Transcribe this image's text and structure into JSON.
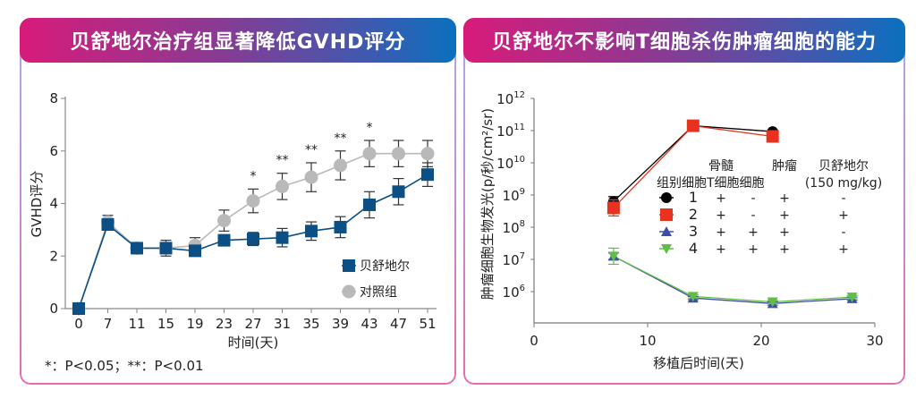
{
  "left_panel": {
    "title": "贝舒地尔治疗组显著降低GVHD评分",
    "footnote": "*：P<0.05；**：P<0.01"
  },
  "right_panel": {
    "title": "贝舒地尔不影响T细胞杀伤肿瘤细胞的能力"
  },
  "colors": {
    "banner_start": "#d81b7a",
    "banner_end": "#0a70bf",
    "treatment": "#0b4f85",
    "control": "#b9b9b9",
    "group1": "#000000",
    "group2": "#e8321f",
    "group3": "#3f4fa8",
    "group4": "#5fbf45"
  },
  "chart_data": [
    {
      "type": "line",
      "title": "贝舒地尔治疗组显著降低GVHD评分",
      "xlabel": "时间(天)",
      "ylabel": "GVHD评分",
      "categories": [
        "0",
        "7",
        "11",
        "15",
        "19",
        "23",
        "27",
        "31",
        "35",
        "39",
        "43",
        "47",
        "51"
      ],
      "ylim": [
        0,
        8
      ],
      "yticks": [
        "0",
        "2",
        "4",
        "6",
        "8"
      ],
      "series": [
        {
          "name": "贝舒地尔",
          "marker": "square",
          "values": [
            0,
            3.2,
            2.3,
            2.3,
            2.2,
            2.6,
            2.65,
            2.7,
            2.95,
            3.1,
            3.95,
            4.45,
            5.1
          ],
          "errors": [
            0,
            0.2,
            0.15,
            0.2,
            0.15,
            0.15,
            0.25,
            0.35,
            0.35,
            0.4,
            0.5,
            0.5,
            0.45
          ]
        },
        {
          "name": "对照组",
          "marker": "circle",
          "values": [
            0,
            3.3,
            2.3,
            2.3,
            2.4,
            3.35,
            4.1,
            4.65,
            5.0,
            5.45,
            5.9,
            5.9,
            5.9
          ],
          "errors": [
            0,
            0.25,
            0.15,
            0.3,
            0.3,
            0.4,
            0.45,
            0.5,
            0.55,
            0.55,
            0.5,
            0.5,
            0.5
          ]
        }
      ],
      "annotations": [
        {
          "category": "27",
          "text": "*"
        },
        {
          "category": "31",
          "text": "**"
        },
        {
          "category": "35",
          "text": "**"
        },
        {
          "category": "39",
          "text": "**"
        },
        {
          "category": "43",
          "text": "*"
        }
      ],
      "legend": "bottom-right",
      "footnote": "*：P<0.05；**：P<0.01"
    },
    {
      "type": "line",
      "title": "贝舒地尔不影响T细胞杀伤肿瘤细胞的能力",
      "xlabel": "移植后时间(天)",
      "ylabel": "肿瘤细胞生物发光(p/秒/cm²/sr)",
      "xlim": [
        0,
        30
      ],
      "xticks": [
        "0",
        "10",
        "20",
        "30"
      ],
      "yscale": "log",
      "ylim_log10": [
        5,
        12
      ],
      "yticks": [
        {
          "base": "10",
          "exp": "12"
        },
        {
          "base": "10",
          "exp": "11"
        },
        {
          "base": "10",
          "exp": "10"
        },
        {
          "base": "10",
          "exp": "9"
        },
        {
          "base": "10",
          "exp": "8"
        },
        {
          "base": "10",
          "exp": "7"
        },
        {
          "base": "10",
          "exp": "6"
        }
      ],
      "series": [
        {
          "name": "1",
          "marker": "circle",
          "x": [
            7,
            14,
            21
          ],
          "log10_values": [
            8.8,
            11.15,
            10.97
          ],
          "log10_err": [
            0.15,
            0.05,
            0.05
          ]
        },
        {
          "name": "2",
          "marker": "square",
          "x": [
            7,
            14,
            21
          ],
          "log10_values": [
            8.6,
            11.15,
            10.82
          ],
          "log10_err": [
            0.25,
            0.05,
            0.05
          ]
        },
        {
          "name": "3",
          "marker": "triangle-up",
          "x": [
            7,
            14,
            21,
            28
          ],
          "log10_values": [
            7.1,
            5.8,
            5.63,
            5.78
          ],
          "log10_err": [
            0.1,
            0.05,
            0.05,
            0.05
          ]
        },
        {
          "name": "4",
          "marker": "triangle-down",
          "x": [
            7,
            14,
            21,
            28
          ],
          "log10_values": [
            7.1,
            5.85,
            5.68,
            5.83
          ],
          "log10_err": [
            0.25,
            0.05,
            0.05,
            0.05
          ]
        }
      ],
      "legend_table": {
        "headers_top": [
          "",
          "骨髓",
          "",
          "肿瘤",
          "贝舒地尔"
        ],
        "headers_bottom": [
          "组别",
          "细胞",
          "T细胞",
          "细胞",
          "(150 mg/kg)"
        ],
        "rows": [
          [
            "1",
            "+",
            "-",
            "+",
            "-"
          ],
          [
            "2",
            "+",
            "-",
            "+",
            "+"
          ],
          [
            "3",
            "+",
            "+",
            "+",
            "-"
          ],
          [
            "4",
            "+",
            "+",
            "+",
            "+"
          ]
        ]
      }
    }
  ]
}
